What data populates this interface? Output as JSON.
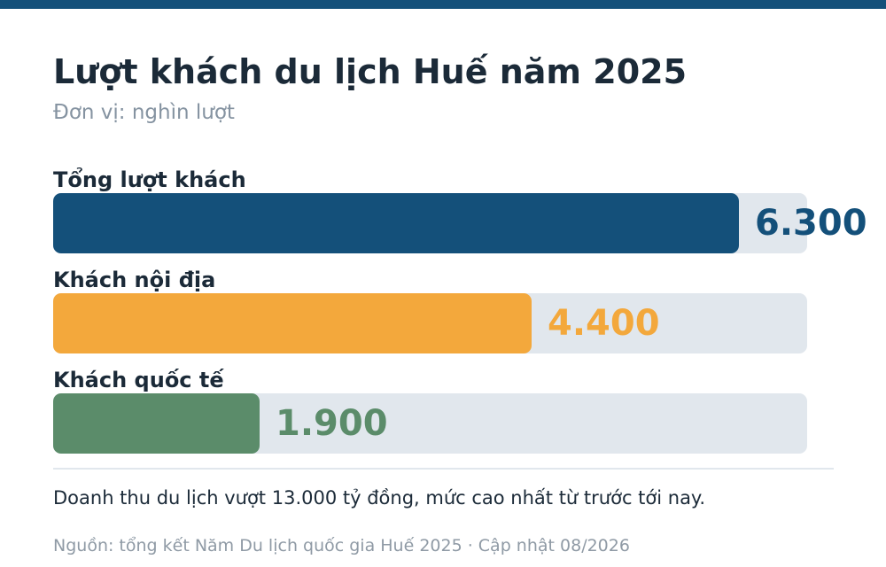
{
  "colors": {
    "accent": "#14507a",
    "track": "#e1e7ed"
  },
  "header": {
    "title": "Lượt khách du lịch Huế năm 2025",
    "subtitle": "Đơn vị: nghìn lượt"
  },
  "chart_data": {
    "type": "bar",
    "orientation": "horizontal",
    "title": "Lượt khách du lịch Huế năm 2025",
    "unit": "Đơn vị: nghìn lượt",
    "categories": [
      "Tổng lượt khách",
      "Khách nội địa",
      "Khách quốc tế"
    ],
    "values": [
      6300,
      4400,
      1900
    ],
    "value_labels": [
      "6.300",
      "4.400",
      "1.900"
    ],
    "colors": [
      "#14507a",
      "#f3a83c",
      "#5b8c6a"
    ],
    "xlim": [
      0,
      6930
    ],
    "grid": false
  },
  "footer": {
    "note": "Doanh thu du lịch vượt 13.000 tỷ đồng, mức cao nhất từ trước tới nay.",
    "source": "Nguồn: tổng kết Năm Du lịch quốc gia Huế 2025 · Cập nhật 08/2026"
  }
}
